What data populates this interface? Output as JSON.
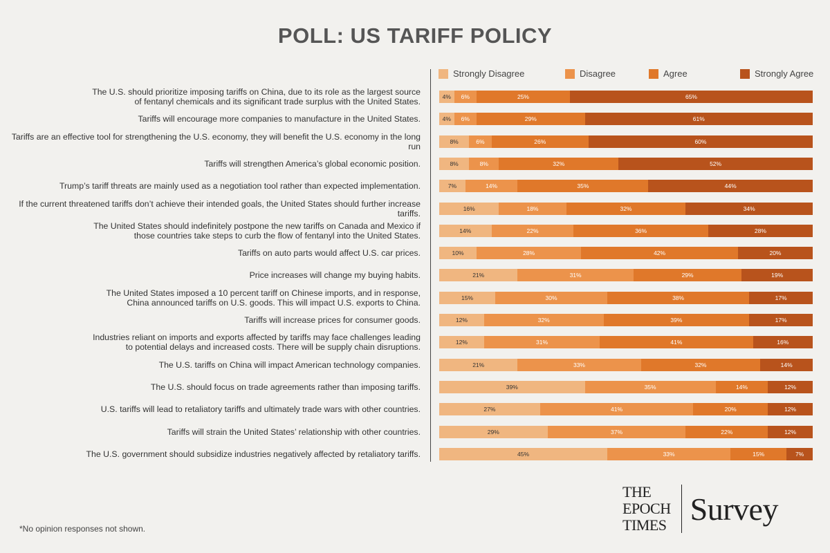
{
  "chart_data": {
    "type": "bar",
    "stacked": "horizontal-100%",
    "title": "POLL: US TARIFF POLICY",
    "series": [
      {
        "name": "Strongly Disagree",
        "color": "#f0b680"
      },
      {
        "name": "Disagree",
        "color": "#ec934b"
      },
      {
        "name": "Agree",
        "color": "#e0782a"
      },
      {
        "name": "Strongly Agree",
        "color": "#b8531c"
      }
    ],
    "rows": [
      {
        "label": "The U.S. should prioritize imposing tariffs on China, due to its role as the largest source\nof fentanyl chemicals and its significant trade surplus with the United States.",
        "values": [
          4,
          6,
          25,
          65
        ]
      },
      {
        "label": "Tariffs will encourage more companies to manufacture in the United States.",
        "values": [
          4,
          6,
          29,
          61
        ]
      },
      {
        "label": "Tariffs are an effective tool for strengthening the U.S. economy, they will benefit the U.S. economy in the long run",
        "values": [
          8,
          6,
          26,
          60
        ]
      },
      {
        "label": "Tariffs will strengthen America’s global economic position.",
        "values": [
          8,
          8,
          32,
          52
        ]
      },
      {
        "label": "Trump’s tariff threats are mainly used as a negotiation tool rather than expected implementation.",
        "values": [
          7,
          14,
          35,
          44
        ]
      },
      {
        "label": "If the current threatened tariffs don’t achieve their intended goals, the United States should further increase tariffs.",
        "values": [
          16,
          18,
          32,
          34
        ]
      },
      {
        "label": "The United States should indefinitely postpone the new tariffs on Canada and Mexico if\nthose countries take steps to curb the flow of fentanyl into the United States.",
        "values": [
          14,
          22,
          36,
          28
        ]
      },
      {
        "label": "Tariffs on auto parts would affect U.S. car prices.",
        "values": [
          10,
          28,
          42,
          20
        ]
      },
      {
        "label": "Price increases will change my buying habits.",
        "values": [
          21,
          31,
          29,
          19
        ]
      },
      {
        "label": "The United States imposed a 10 percent tariff on Chinese imports, and in response,\nChina announced tariffs on U.S. goods. This will impact U.S. exports to China.",
        "values": [
          15,
          30,
          38,
          17
        ]
      },
      {
        "label": "Tariffs will increase prices for consumer goods.",
        "values": [
          12,
          32,
          39,
          17
        ]
      },
      {
        "label": "Industries reliant on imports and exports affected by tariffs may face challenges leading\nto potential delays and increased costs. There will be supply chain disruptions.",
        "values": [
          12,
          31,
          41,
          16
        ]
      },
      {
        "label": "The U.S. tariffs on China will impact American technology companies.",
        "values": [
          21,
          33,
          32,
          14
        ]
      },
      {
        "label": "The U.S. should focus on trade agreements rather than imposing tariffs.",
        "values": [
          39,
          35,
          14,
          12
        ]
      },
      {
        "label": "U.S. tariffs will lead to retaliatory tariffs and ultimately trade wars with other countries.",
        "values": [
          27,
          41,
          20,
          12
        ]
      },
      {
        "label": "Tariffs will strain the United States’ relationship with other countries.",
        "values": [
          29,
          37,
          22,
          12
        ]
      },
      {
        "label": "The U.S. government should subsidize industries negatively affected by retaliatory tariffs.",
        "values": [
          45,
          33,
          15,
          7
        ]
      }
    ],
    "legend_position": "top",
    "grid": false
  },
  "footnote": "*No opinion responses not shown.",
  "logo": {
    "line1": "THE",
    "line2": "EPOCH",
    "line3": "TIMES",
    "survey": "Survey"
  }
}
